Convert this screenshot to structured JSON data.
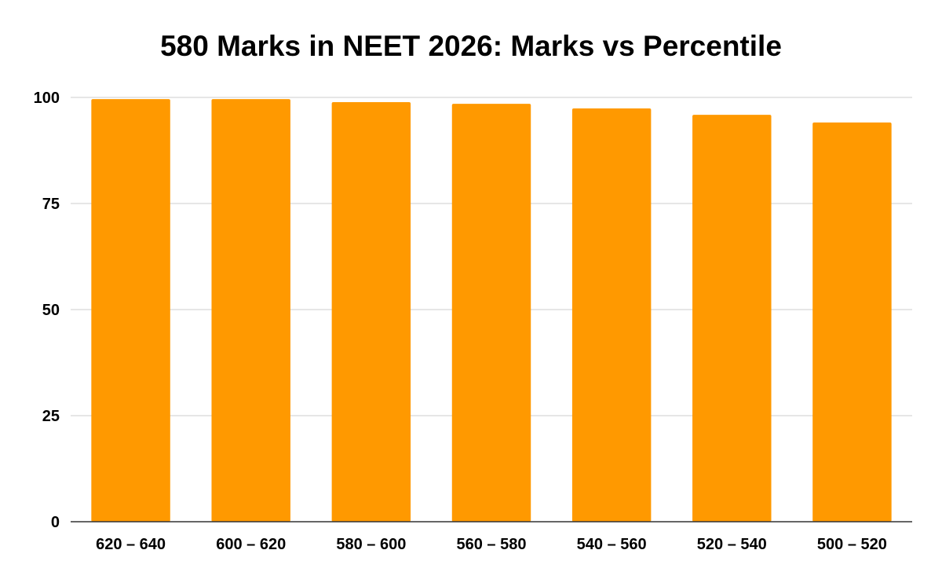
{
  "chart_data": {
    "type": "bar",
    "title": "580 Marks in NEET 2026: Marks vs Percentile",
    "xlabel": "",
    "ylabel": "",
    "categories": [
      "620 – 640",
      "600 – 620",
      "580 – 600",
      "560 – 580",
      "540 – 560",
      "520 – 540",
      "500 – 520"
    ],
    "values": [
      99.6,
      99.6,
      98.9,
      98.5,
      97.4,
      95.9,
      94.1
    ],
    "ylim": [
      0,
      100
    ],
    "yticks": [
      "0",
      "25",
      "50",
      "75",
      "100"
    ],
    "grid": true,
    "legend": "none",
    "bar_color": "#ff9900",
    "grid_color": "#cccccc",
    "axis_color": "#333333"
  }
}
